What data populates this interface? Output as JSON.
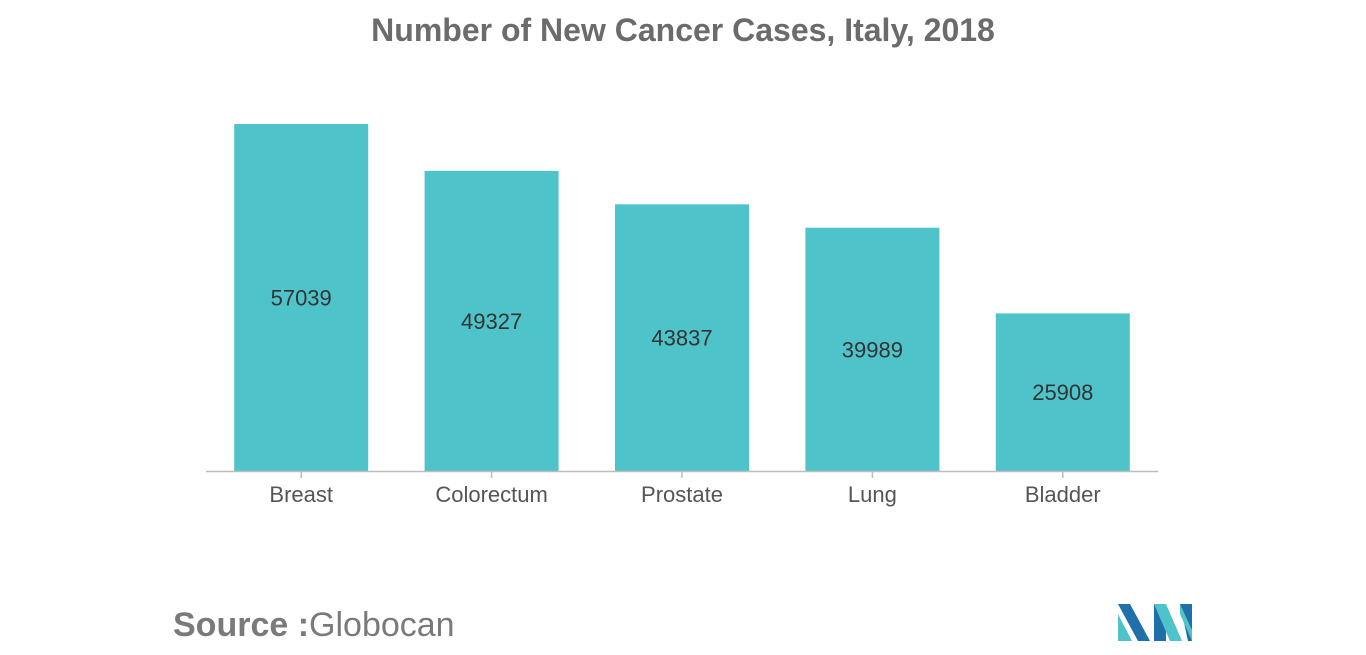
{
  "chart_data": {
    "type": "bar",
    "title": "Number of New Cancer Cases, Italy, 2018",
    "categories": [
      "Breast",
      "Colorectum",
      "Prostate",
      "Lung",
      "Bladder"
    ],
    "values": [
      57039,
      49327,
      43837,
      39989,
      25908
    ],
    "xlabel": "",
    "ylabel": "",
    "ylim": [
      0,
      57039
    ],
    "grid": false,
    "bar_color": "#4fc3ca",
    "data_labels": "inside-center"
  },
  "source": {
    "label": "Source :",
    "value": "Globocan"
  },
  "logo": {
    "icon": "mordor-intelligence-logo",
    "colors": [
      "#1f6fa8",
      "#4fc3ca"
    ]
  }
}
